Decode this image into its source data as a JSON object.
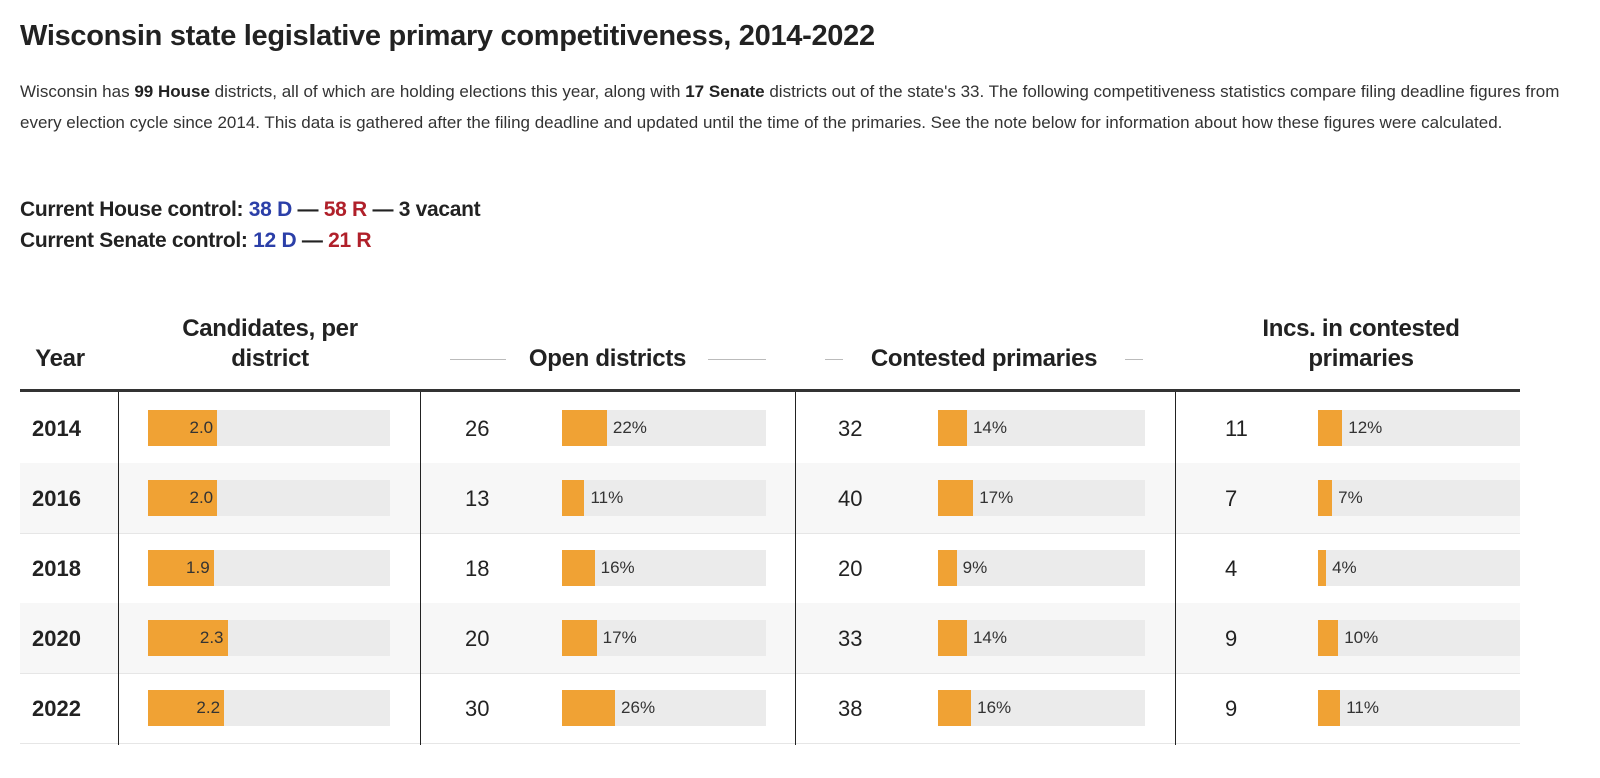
{
  "title": "Wisconsin state legislative primary competitiveness, 2014-2022",
  "intro": {
    "p1": "Wisconsin has ",
    "b1": "99 House",
    "p2": " districts, all of which are holding elections this year, along with ",
    "b2": "17 Senate",
    "p3": " districts out of the state's 33. The following competitiveness statistics compare filing deadline figures from every election cycle since 2014. This data is gathered after the filing deadline and updated until the time of the primaries. See the note below for information about how these figures were calculated."
  },
  "house": {
    "label": "Current House control: ",
    "d": "38 D",
    "sep1": " — ",
    "r": "58 R",
    "sep2": " — ",
    "vacant": "3 vacant"
  },
  "senate": {
    "label": "Current Senate control: ",
    "d": "12 D",
    "sep1": " — ",
    "r": "21 R"
  },
  "colors": {
    "bar": "#f0a234",
    "track": "#ebebeb",
    "dem": "#2b3fa8",
    "rep": "#b0202a"
  },
  "chart_data": {
    "type": "table",
    "headers": {
      "year": "Year",
      "candidates": "Candidates, per district",
      "open": "Open districts",
      "contested": "Contested primaries",
      "incs": "Incs. in contested primaries"
    },
    "rows": [
      {
        "year": "2014",
        "candidates": "2.0",
        "open": "26",
        "open_pct": "22%",
        "contested": "32",
        "contested_pct": "14%",
        "incs": "11",
        "incs_pct": "12%"
      },
      {
        "year": "2016",
        "candidates": "2.0",
        "open": "13",
        "open_pct": "11%",
        "contested": "40",
        "contested_pct": "17%",
        "incs": "7",
        "incs_pct": "7%"
      },
      {
        "year": "2018",
        "candidates": "1.9",
        "open": "18",
        "open_pct": "16%",
        "contested": "20",
        "contested_pct": "9%",
        "incs": "4",
        "incs_pct": "4%"
      },
      {
        "year": "2020",
        "candidates": "2.3",
        "open": "20",
        "open_pct": "17%",
        "contested": "33",
        "contested_pct": "14%",
        "incs": "9",
        "incs_pct": "10%"
      },
      {
        "year": "2022",
        "candidates": "2.2",
        "open": "30",
        "open_pct": "26%",
        "contested": "38",
        "contested_pct": "16%",
        "incs": "9",
        "incs_pct": "11%"
      }
    ],
    "candidates_max": 7
  }
}
